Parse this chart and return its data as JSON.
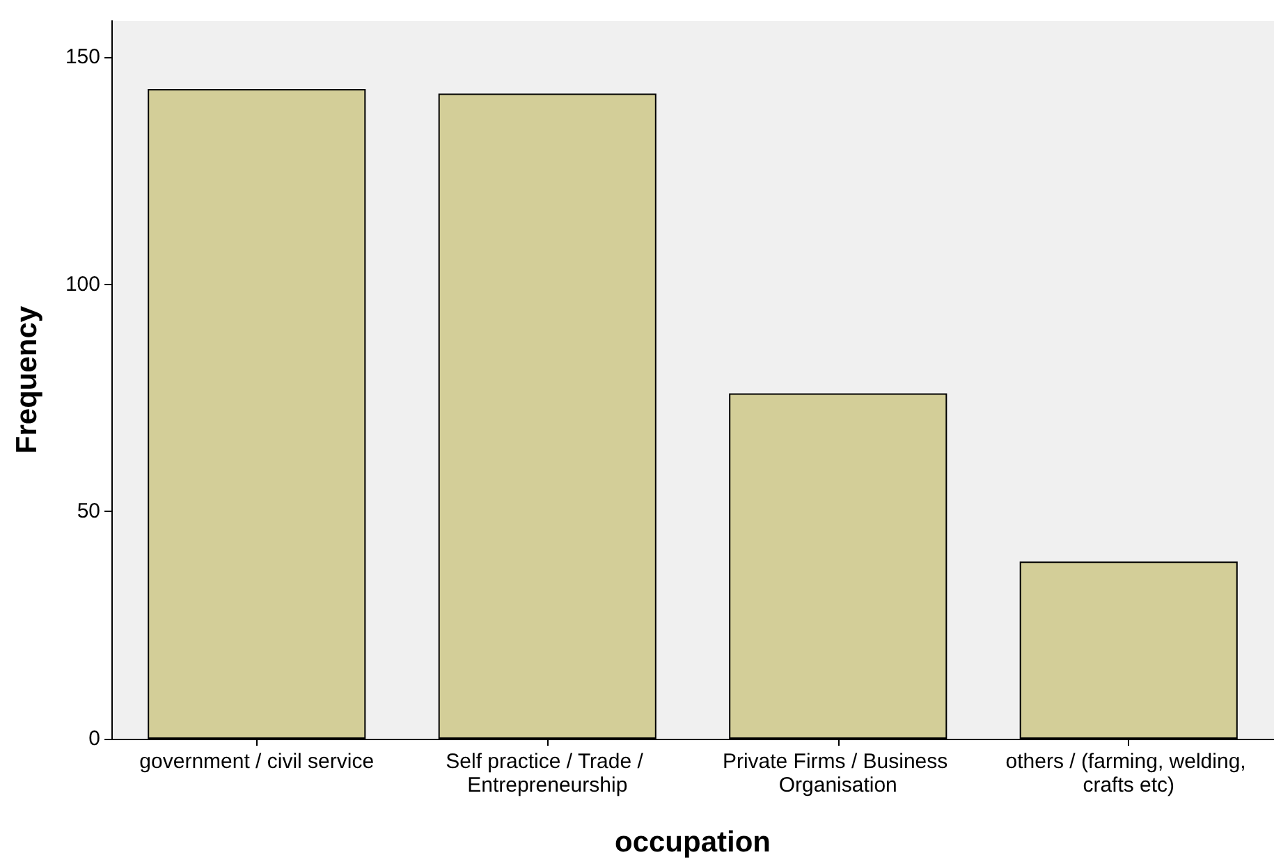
{
  "chart_data": {
    "type": "bar",
    "xlabel": "occupation",
    "ylabel": "Frequency",
    "categories": [
      "government / civil service",
      "Self practice / Trade / Entrepreneurship",
      "Private Firms / Business Organisation",
      "others / (farming, welding, crafts etc)"
    ],
    "values": [
      143,
      142,
      76,
      39
    ],
    "color": "#d3ce98",
    "ylim": [
      0,
      158
    ],
    "yticks": [
      0,
      50,
      100,
      150
    ],
    "grid": false
  }
}
